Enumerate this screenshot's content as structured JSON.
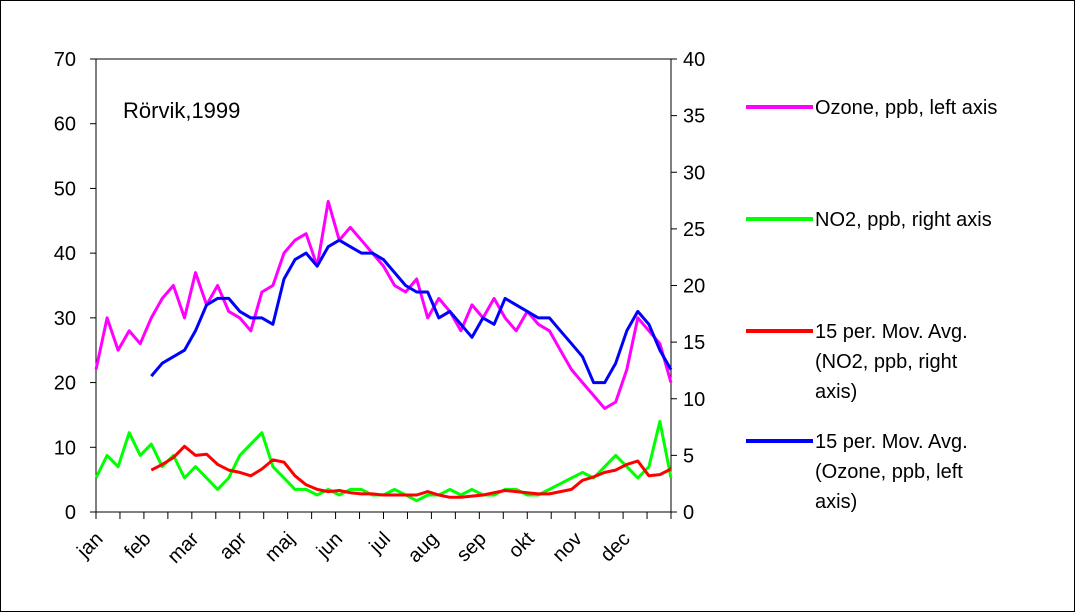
{
  "chart_data": {
    "type": "line",
    "title": "Rörvik,1999",
    "months": [
      "jan",
      "feb",
      "mar",
      "apr",
      "maj",
      "jun",
      "jul",
      "aug",
      "sep",
      "okt",
      "nov",
      "dec"
    ],
    "left_axis": {
      "ylim": [
        0,
        70
      ],
      "ticks": [
        "0",
        "10",
        "20",
        "30",
        "40",
        "50",
        "60",
        "70"
      ]
    },
    "right_axis": {
      "ylim": [
        0,
        40
      ],
      "ticks": [
        "0",
        "5",
        "10",
        "15",
        "20",
        "25",
        "30",
        "35",
        "40"
      ]
    },
    "x_range_days": [
      1,
      365
    ],
    "grid": false,
    "legend_position": "right",
    "series": [
      {
        "name": "Ozone, ppb, left axis",
        "axis": "left",
        "color": "#ff00ff",
        "x": [
          1,
          8,
          15,
          22,
          29,
          36,
          43,
          50,
          57,
          64,
          71,
          78,
          85,
          92,
          99,
          106,
          113,
          120,
          127,
          134,
          141,
          148,
          155,
          162,
          169,
          176,
          183,
          190,
          197,
          204,
          211,
          218,
          225,
          232,
          239,
          246,
          253,
          260,
          267,
          274,
          281,
          288,
          295,
          302,
          309,
          316,
          323,
          330,
          337,
          344,
          351,
          358,
          365
        ],
        "values": [
          22,
          30,
          25,
          28,
          26,
          30,
          33,
          35,
          30,
          37,
          32,
          35,
          31,
          30,
          28,
          34,
          35,
          40,
          42,
          43,
          38,
          48,
          42,
          44,
          42,
          40,
          38,
          35,
          34,
          36,
          30,
          33,
          31,
          28,
          32,
          30,
          33,
          30,
          28,
          31,
          29,
          28,
          25,
          22,
          20,
          18,
          16,
          17,
          22,
          30,
          28,
          26,
          20
        ]
      },
      {
        "name": "NO2, ppb, right axis",
        "axis": "right",
        "color": "#00ff00",
        "x": [
          1,
          8,
          15,
          22,
          29,
          36,
          43,
          50,
          57,
          64,
          71,
          78,
          85,
          92,
          99,
          106,
          113,
          120,
          127,
          134,
          141,
          148,
          155,
          162,
          169,
          176,
          183,
          190,
          197,
          204,
          211,
          218,
          225,
          232,
          239,
          246,
          253,
          260,
          267,
          274,
          281,
          288,
          295,
          302,
          309,
          316,
          323,
          330,
          337,
          344,
          351,
          358,
          365
        ],
        "values": [
          3,
          5,
          4,
          7,
          5,
          6,
          4,
          5,
          3,
          4,
          3,
          2,
          3,
          5,
          6,
          7,
          4,
          3,
          2,
          2,
          1.5,
          2,
          1.5,
          2,
          2,
          1.5,
          1.5,
          2,
          1.5,
          1,
          1.5,
          1.5,
          2,
          1.5,
          2,
          1.5,
          1.5,
          2,
          2,
          1.5,
          1.5,
          2,
          2.5,
          3,
          3.5,
          3,
          4,
          5,
          4,
          3,
          4,
          8,
          3
        ]
      },
      {
        "name": "15 per. Mov. Avg. (NO2, ppb, right axis)",
        "axis": "right",
        "color": "#ff0000",
        "x": [
          36,
          43,
          50,
          57,
          64,
          71,
          78,
          85,
          92,
          99,
          106,
          113,
          120,
          127,
          134,
          141,
          148,
          155,
          162,
          169,
          176,
          183,
          190,
          197,
          204,
          211,
          218,
          225,
          232,
          239,
          246,
          253,
          260,
          267,
          274,
          281,
          288,
          295,
          302,
          309,
          316,
          323,
          330,
          337,
          344,
          351,
          358,
          365
        ],
        "values": [
          3.7,
          4.2,
          4.8,
          5.8,
          5.0,
          5.1,
          4.2,
          3.7,
          3.5,
          3.2,
          3.8,
          4.6,
          4.4,
          3.2,
          2.4,
          2.0,
          1.8,
          1.9,
          1.7,
          1.6,
          1.6,
          1.5,
          1.5,
          1.5,
          1.5,
          1.8,
          1.5,
          1.3,
          1.3,
          1.4,
          1.5,
          1.7,
          1.9,
          1.8,
          1.7,
          1.6,
          1.6,
          1.8,
          2.0,
          2.8,
          3.1,
          3.5,
          3.7,
          4.2,
          4.5,
          3.2,
          3.3,
          3.8
        ]
      },
      {
        "name": "15 per. Mov. Avg. (Ozone, ppb, left axis)",
        "axis": "left",
        "color": "#0000ff",
        "x": [
          36,
          43,
          50,
          57,
          64,
          71,
          78,
          85,
          92,
          99,
          106,
          113,
          120,
          127,
          134,
          141,
          148,
          155,
          162,
          169,
          176,
          183,
          190,
          197,
          204,
          211,
          218,
          225,
          232,
          239,
          246,
          253,
          260,
          267,
          274,
          281,
          288,
          295,
          302,
          309,
          316,
          323,
          330,
          337,
          344,
          351,
          358,
          365
        ],
        "values": [
          21,
          23,
          24,
          25,
          28,
          32,
          33,
          33,
          31,
          30,
          30,
          29,
          36,
          39,
          40,
          38,
          41,
          42,
          41,
          40,
          40,
          39,
          37,
          35,
          34,
          34,
          30,
          31,
          29,
          27,
          30,
          29,
          33,
          32,
          31,
          30,
          30,
          28,
          26,
          24,
          20,
          20,
          23,
          28,
          31,
          29,
          25,
          22
        ]
      }
    ],
    "legend": [
      "Ozone, ppb, left axis",
      "NO2, ppb, right axis",
      "15 per. Mov. Avg. (NO2, ppb, right axis)",
      "15 per. Mov. Avg. (Ozone, ppb, left axis)"
    ]
  }
}
